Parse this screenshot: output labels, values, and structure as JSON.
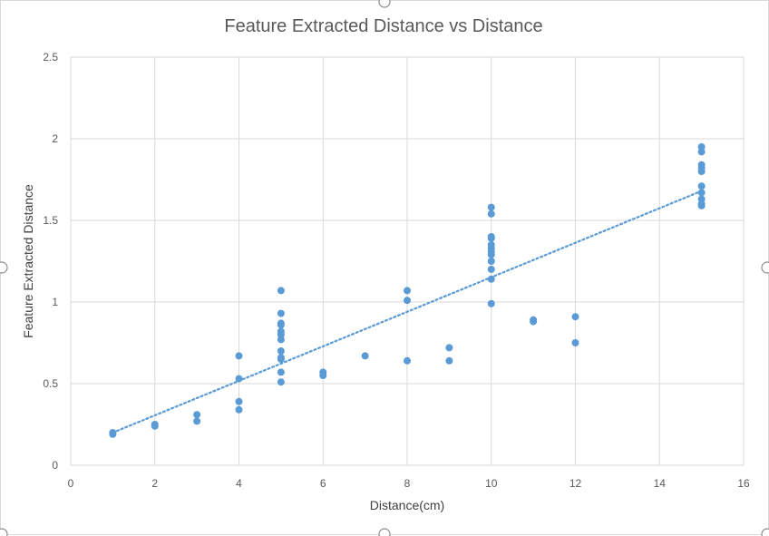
{
  "chart_data": {
    "type": "scatter",
    "title": "Feature Extracted Distance vs Distance",
    "xlabel": "Distance(cm)",
    "ylabel": "Feature Extracted Distance",
    "xlim": [
      0,
      16
    ],
    "ylim": [
      0,
      2.5
    ],
    "x_ticks": [
      "0",
      "2",
      "4",
      "6",
      "8",
      "10",
      "12",
      "14",
      "16"
    ],
    "y_ticks": [
      "0",
      "0.5",
      "1",
      "1.5",
      "2",
      "2.5"
    ],
    "grid": true,
    "legend": "none",
    "marker_color": "#5b9bd5",
    "trendline": {
      "type": "linear",
      "style": "dotted",
      "x": [
        1,
        15
      ],
      "y": [
        0.2,
        1.68
      ]
    },
    "series": [
      {
        "points": [
          [
            1,
            0.2
          ],
          [
            1,
            0.19
          ],
          [
            2,
            0.25
          ],
          [
            2,
            0.24
          ],
          [
            3,
            0.31
          ],
          [
            3,
            0.27
          ],
          [
            4,
            0.67
          ],
          [
            4,
            0.53
          ],
          [
            4,
            0.39
          ],
          [
            4,
            0.34
          ],
          [
            5,
            1.07
          ],
          [
            5,
            0.93
          ],
          [
            5,
            0.87
          ],
          [
            5,
            0.86
          ],
          [
            5,
            0.82
          ],
          [
            5,
            0.8
          ],
          [
            5,
            0.77
          ],
          [
            5,
            0.7
          ],
          [
            5,
            0.66
          ],
          [
            5,
            0.65
          ],
          [
            5,
            0.57
          ],
          [
            5,
            0.51
          ],
          [
            6,
            0.57
          ],
          [
            6,
            0.55
          ],
          [
            7,
            0.67
          ],
          [
            8,
            1.07
          ],
          [
            8,
            1.01
          ],
          [
            8,
            0.64
          ],
          [
            9,
            0.72
          ],
          [
            9,
            0.64
          ],
          [
            10,
            1.58
          ],
          [
            10,
            1.54
          ],
          [
            10,
            1.4
          ],
          [
            10,
            1.39
          ],
          [
            10,
            1.35
          ],
          [
            10,
            1.33
          ],
          [
            10,
            1.31
          ],
          [
            10,
            1.29
          ],
          [
            10,
            1.25
          ],
          [
            10,
            1.2
          ],
          [
            10,
            1.14
          ],
          [
            10,
            0.99
          ],
          [
            11,
            0.89
          ],
          [
            11,
            0.88
          ],
          [
            12,
            0.91
          ],
          [
            12,
            0.75
          ],
          [
            15,
            1.95
          ],
          [
            15,
            1.92
          ],
          [
            15,
            1.84
          ],
          [
            15,
            1.82
          ],
          [
            15,
            1.8
          ],
          [
            15,
            1.71
          ],
          [
            15,
            1.67
          ],
          [
            15,
            1.63
          ],
          [
            15,
            1.6
          ],
          [
            15,
            1.59
          ]
        ]
      }
    ]
  }
}
